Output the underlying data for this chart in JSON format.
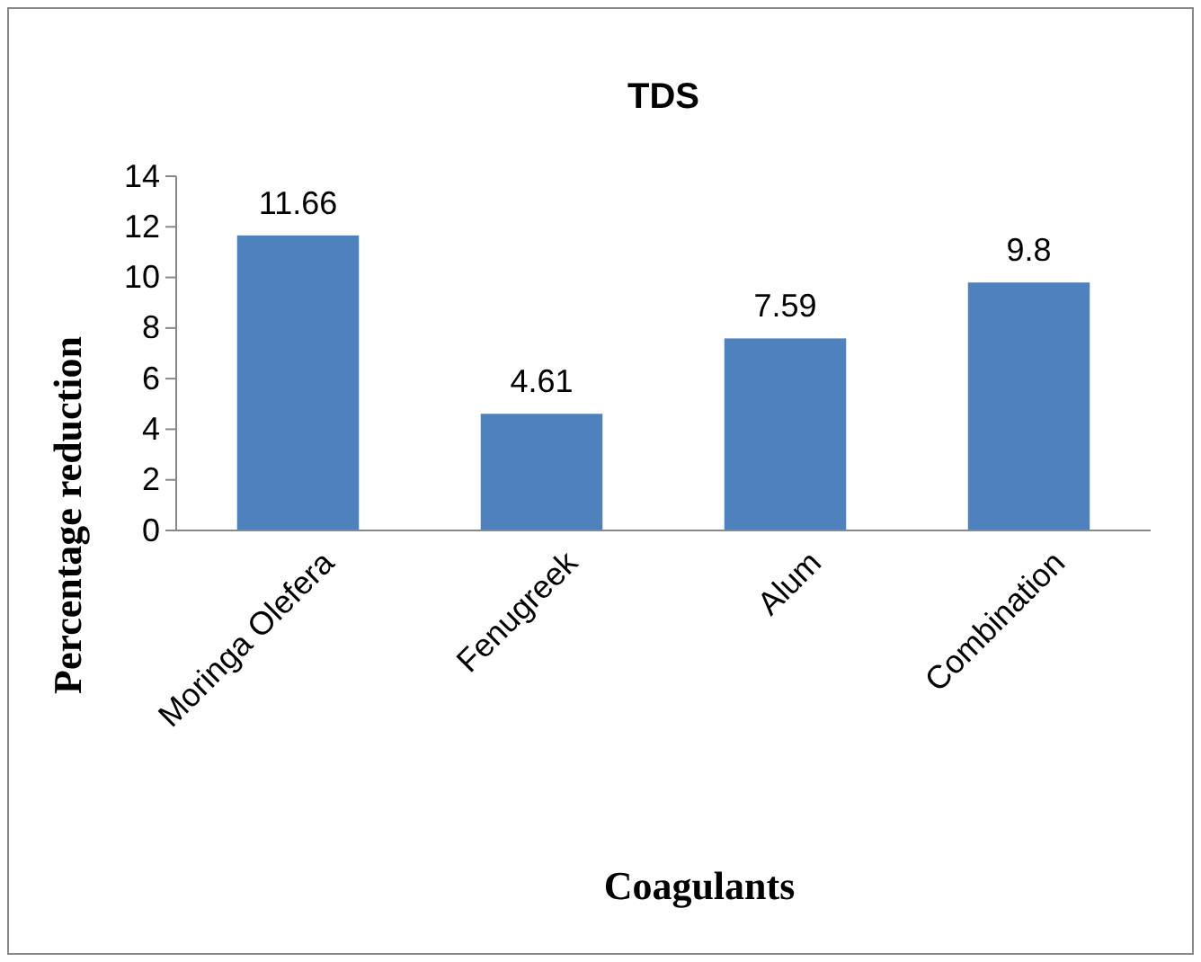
{
  "chart_data": {
    "type": "bar",
    "title": "TDS",
    "xlabel": "Coagulants",
    "ylabel": "Percentage reduction",
    "categories": [
      "Moringa Olefera",
      "Fenugreek",
      "Alum",
      "Combination"
    ],
    "values": [
      11.66,
      4.61,
      7.59,
      9.8
    ],
    "color": "#4f81bd",
    "ylim": [
      0,
      14
    ],
    "yticks": [
      0,
      2,
      4,
      6,
      8,
      10,
      12,
      14
    ],
    "data_labels": true
  }
}
